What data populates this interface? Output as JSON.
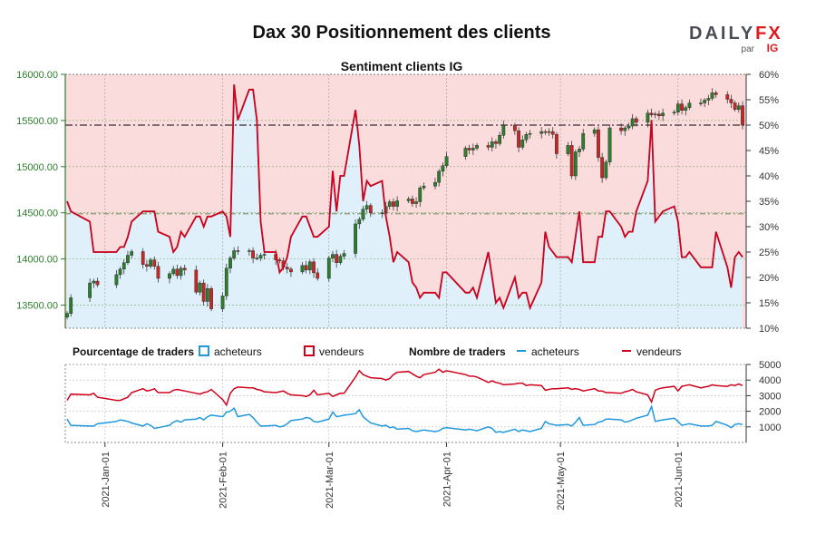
{
  "title": "Dax 30 Positionnement des clients",
  "subtitle": "Sentiment clients IG",
  "logo": {
    "main": "DAILY",
    "accent": "FX",
    "by": "par",
    "brand": "IG"
  },
  "colors": {
    "buyers": "#1f98e0",
    "sellers": "#d0021b",
    "candle_up": "#2e7d2e",
    "candle_down": "#c62828",
    "seller_zone": "#fbdcdc",
    "buyer_zone": "#dff0fa",
    "left_axis": "#2e7d2e"
  },
  "legend": {
    "pct_title": "Pourcentage de traders",
    "pct_buyers": "acheteurs",
    "pct_sellers": "vendeurs",
    "num_title": "Nombre de traders",
    "num_buyers": "acheteurs",
    "num_sellers": "vendeurs"
  },
  "chart_data": [
    {
      "type": "candlestick",
      "title": "Sentiment clients IG",
      "x": [
        "2020-12-22",
        "2020-12-23",
        "2020-12-28",
        "2020-12-29",
        "2020-12-30",
        "2021-01-04",
        "2021-01-05",
        "2021-01-06",
        "2021-01-07",
        "2021-01-08",
        "2021-01-11",
        "2021-01-12",
        "2021-01-13",
        "2021-01-14",
        "2021-01-15",
        "2021-01-18",
        "2021-01-19",
        "2021-01-20",
        "2021-01-21",
        "2021-01-22",
        "2021-01-25",
        "2021-01-26",
        "2021-01-27",
        "2021-01-28",
        "2021-01-29",
        "2021-02-01",
        "2021-02-02",
        "2021-02-03",
        "2021-02-04",
        "2021-02-05",
        "2021-02-08",
        "2021-02-09",
        "2021-02-10",
        "2021-02-11",
        "2021-02-12",
        "2021-02-15",
        "2021-02-16",
        "2021-02-17",
        "2021-02-18",
        "2021-02-19",
        "2021-02-22",
        "2021-02-23",
        "2021-02-24",
        "2021-02-25",
        "2021-02-26",
        "2021-03-01",
        "2021-03-02",
        "2021-03-03",
        "2021-03-04",
        "2021-03-05",
        "2021-03-08",
        "2021-03-09",
        "2021-03-10",
        "2021-03-11",
        "2021-03-12",
        "2021-03-15",
        "2021-03-16",
        "2021-03-17",
        "2021-03-18",
        "2021-03-19",
        "2021-03-22",
        "2021-03-23",
        "2021-03-24",
        "2021-03-25",
        "2021-03-26",
        "2021-03-29",
        "2021-03-30",
        "2021-03-31",
        "2021-04-01",
        "2021-04-06",
        "2021-04-07",
        "2021-04-08",
        "2021-04-09",
        "2021-04-12",
        "2021-04-13",
        "2021-04-14",
        "2021-04-15",
        "2021-04-16",
        "2021-04-19",
        "2021-04-20",
        "2021-04-21",
        "2021-04-22",
        "2021-04-23",
        "2021-04-26",
        "2021-04-27",
        "2021-04-28",
        "2021-04-29",
        "2021-04-30",
        "2021-05-03",
        "2021-05-04",
        "2021-05-05",
        "2021-05-06",
        "2021-05-07",
        "2021-05-10",
        "2021-05-11",
        "2021-05-12",
        "2021-05-13",
        "2021-05-14",
        "2021-05-17",
        "2021-05-18",
        "2021-05-19",
        "2021-05-20",
        "2021-05-21",
        "2021-05-24",
        "2021-05-25",
        "2021-05-26",
        "2021-05-27",
        "2021-05-28",
        "2021-05-31",
        "2021-06-01",
        "2021-06-02",
        "2021-06-03",
        "2021-06-04",
        "2021-06-07",
        "2021-06-08",
        "2021-06-09",
        "2021-06-10",
        "2021-06-11",
        "2021-06-14",
        "2021-06-15",
        "2021-06-16",
        "2021-06-17",
        "2021-06-18"
      ],
      "dax_close": [
        13410,
        13580,
        13740,
        13760,
        13720,
        13830,
        13890,
        13960,
        14040,
        14080,
        13940,
        13920,
        13990,
        13920,
        13790,
        13840,
        13890,
        13820,
        13900,
        13880,
        13640,
        13740,
        13540,
        13680,
        13460,
        13600,
        13900,
        14010,
        14090,
        14080,
        14090,
        14010,
        14010,
        14040,
        14050,
        13990,
        13980,
        13910,
        13890,
        13860,
        13930,
        13880,
        13970,
        13850,
        13790,
        14010,
        14050,
        13960,
        14030,
        14060,
        14380,
        14430,
        14540,
        14580,
        14500,
        14500,
        14570,
        14620,
        14570,
        14630,
        14650,
        14600,
        14620,
        14770,
        14790,
        14830,
        14950,
        15010,
        15110,
        15200,
        15180,
        15200,
        15230,
        15210,
        15270,
        15250,
        15340,
        15450,
        15390,
        15210,
        15290,
        15350,
        15360,
        15380,
        15370,
        15380,
        15350,
        15140,
        15230,
        14900,
        15160,
        15190,
        15360,
        15400,
        15100,
        14880,
        15050,
        15420,
        15390,
        15420,
        15440,
        15520,
        15480,
        15580,
        15560,
        15570,
        15550,
        15580,
        15590,
        15680,
        15610,
        15640,
        15690,
        15690,
        15720,
        15740,
        15800,
        15780,
        15730,
        15690,
        15620,
        15660,
        15450
      ],
      "buyers_pct": [
        35,
        33,
        31,
        25,
        25,
        25,
        26,
        26,
        28,
        31,
        33,
        33,
        33,
        33,
        29,
        28,
        25,
        26,
        29,
        28,
        32,
        32,
        30,
        32,
        32,
        33,
        32,
        28,
        58,
        51,
        57,
        57,
        51,
        31,
        25,
        25,
        21,
        22,
        24,
        28,
        32,
        32,
        30,
        28,
        28,
        30,
        41,
        33,
        40,
        40,
        53,
        46,
        35,
        39,
        38,
        39,
        32,
        28,
        23,
        25,
        23,
        19,
        18,
        16,
        17,
        17,
        16,
        21,
        21,
        17,
        17,
        18,
        16,
        25,
        20,
        15,
        16,
        14,
        20,
        16,
        17,
        17,
        14,
        19,
        29,
        26,
        25,
        24,
        24,
        23,
        28,
        33,
        23,
        23,
        28,
        28,
        33,
        33,
        30,
        28,
        29,
        29,
        33,
        39,
        51,
        31,
        32,
        33,
        34,
        31,
        24,
        24,
        25,
        22,
        22,
        22,
        22,
        29,
        22,
        18,
        24,
        25,
        24
      ],
      "sellers_pct": [
        65,
        67,
        69,
        75,
        75,
        75,
        74,
        74,
        72,
        69,
        67,
        67,
        67,
        67,
        71,
        72,
        75,
        74,
        71,
        72,
        68,
        68,
        70,
        68,
        68,
        67,
        68,
        72,
        42,
        49,
        43,
        43,
        49,
        69,
        75,
        75,
        79,
        78,
        76,
        72,
        68,
        68,
        70,
        72,
        72,
        70,
        59,
        67,
        60,
        60,
        47,
        54,
        65,
        61,
        62,
        61,
        68,
        72,
        77,
        75,
        77,
        81,
        82,
        84,
        83,
        83,
        84,
        79,
        79,
        83,
        83,
        82,
        84,
        75,
        80,
        85,
        84,
        86,
        80,
        84,
        83,
        83,
        86,
        81,
        71,
        74,
        75,
        76,
        76,
        77,
        72,
        67,
        77,
        77,
        72,
        72,
        67,
        67,
        70,
        72,
        71,
        71,
        67,
        61,
        49,
        69,
        68,
        67,
        66,
        69,
        76,
        76,
        75,
        78,
        78,
        78,
        78,
        71,
        78,
        82,
        76,
        75,
        76
      ],
      "buyers_count": [
        1500,
        1100,
        1050,
        1050,
        1200,
        1350,
        1450,
        1400,
        1350,
        1250,
        1050,
        1200,
        1100,
        900,
        950,
        1100,
        1300,
        1400,
        1300,
        1450,
        1500,
        1600,
        1450,
        1650,
        1750,
        1650,
        1950,
        2000,
        2200,
        1650,
        1800,
        1600,
        1300,
        1050,
        1050,
        1100,
        1000,
        1050,
        1200,
        1400,
        1500,
        1600,
        1550,
        1350,
        1300,
        1500,
        1950,
        1650,
        1700,
        1750,
        1850,
        2100,
        1650,
        1450,
        1250,
        1050,
        1100,
        950,
        1000,
        850,
        900,
        750,
        700,
        750,
        800,
        700,
        750,
        900,
        950,
        800,
        850,
        800,
        750,
        1000,
        900,
        650,
        700,
        650,
        850,
        700,
        800,
        750,
        700,
        900,
        1350,
        1200,
        1150,
        1100,
        1150,
        1050,
        1300,
        1600,
        1100,
        1150,
        1300,
        1350,
        1500,
        1500,
        1450,
        1300,
        1350,
        1450,
        1550,
        1750,
        2300,
        1350,
        1400,
        1450,
        1550,
        1350,
        1100,
        1150,
        1200,
        1050,
        1050,
        1050,
        1100,
        1350,
        1100,
        950,
        1150,
        1200,
        1150
      ],
      "sellers_count": [
        2700,
        3100,
        3050,
        3150,
        2900,
        2700,
        2700,
        2800,
        2900,
        3200,
        3450,
        3300,
        3350,
        3450,
        3200,
        3200,
        3350,
        3400,
        3350,
        3300,
        3150,
        3100,
        3200,
        3250,
        3400,
        2750,
        2400,
        3150,
        3450,
        3550,
        3500,
        3500,
        3400,
        3350,
        3250,
        3200,
        3250,
        3300,
        3150,
        3050,
        3000,
        2950,
        3050,
        3350,
        3050,
        3150,
        2950,
        3050,
        3150,
        3150,
        4200,
        4600,
        4350,
        4250,
        4150,
        4100,
        4000,
        4100,
        4350,
        4500,
        4550,
        4400,
        4250,
        4150,
        4350,
        4500,
        4700,
        4500,
        4600,
        4350,
        4250,
        4250,
        4200,
        3850,
        3950,
        3850,
        3800,
        3700,
        3750,
        3800,
        3800,
        3650,
        3700,
        3650,
        3350,
        3400,
        3450,
        3450,
        3500,
        3400,
        3450,
        3400,
        3300,
        3450,
        3300,
        3300,
        3200,
        3200,
        3150,
        3250,
        3300,
        3400,
        3250,
        3050,
        2600,
        3350,
        3450,
        3500,
        3600,
        3300,
        3600,
        3650,
        3700,
        3500,
        3550,
        3600,
        3700,
        3650,
        3600,
        3700,
        3650,
        3750,
        3650
      ],
      "y_left_ticks": [
        "13500.00",
        "14000.00",
        "14500.00",
        "15000.00",
        "15500.00",
        "16000.00"
      ],
      "y_right_ticks": [
        "10%",
        "15%",
        "20%",
        "25%",
        "30%",
        "35%",
        "40%",
        "45%",
        "50%",
        "55%",
        "60%"
      ],
      "y_bottom_ticks": [
        "1000",
        "2000",
        "3000",
        "4000",
        "5000"
      ],
      "date_ticks": [
        "2021-Jan-01",
        "2021-Feb-01",
        "2021-Mar-01",
        "2021-Apr-01",
        "2021-May-01",
        "2021-Jun-01"
      ],
      "ylim_left": [
        13250,
        16000
      ],
      "ylim_right": [
        10,
        60
      ],
      "ylim_bottom": [
        0,
        5000
      ],
      "dashed_level_dark": 15450,
      "dashed_level_grey": 14490,
      "legend_position": "bottom"
    }
  ]
}
